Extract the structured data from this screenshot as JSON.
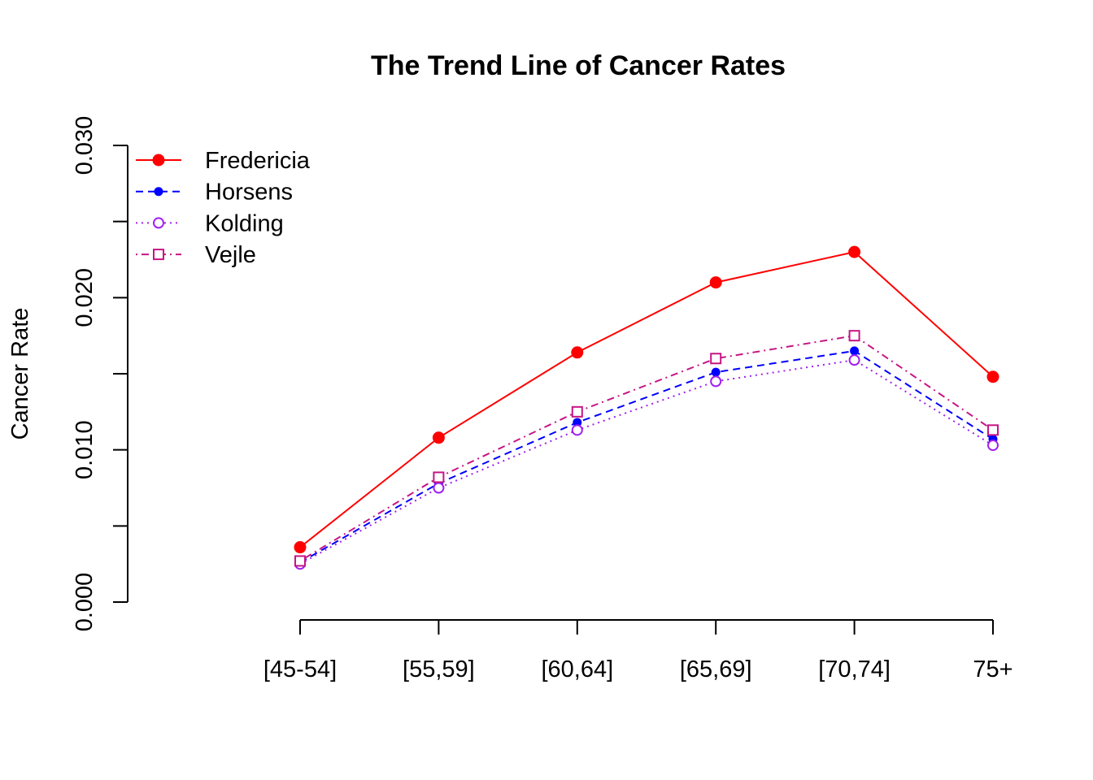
{
  "chart_data": {
    "type": "line",
    "title": "The Trend Line of Cancer Rates",
    "xlabel": "",
    "ylabel": "Cancer Rate",
    "categories": [
      "[45-54]",
      "[55,59]",
      "[60,64]",
      "[65,69]",
      "[70,74]",
      "75+"
    ],
    "ylim": [
      0.0,
      0.03
    ],
    "yticks": [
      0.0,
      0.005,
      0.01,
      0.015,
      0.02,
      0.025,
      0.03
    ],
    "ytick_labels": [
      "0.000",
      "",
      "0.010",
      "",
      "0.020",
      "",
      "0.030"
    ],
    "grid": false,
    "legend_position": "top-left",
    "series": [
      {
        "name": "Fredericia",
        "color": "#ff0000",
        "line": "solid",
        "marker": "filled-circle",
        "values": [
          0.0036,
          0.0108,
          0.0164,
          0.021,
          0.023,
          0.0148
        ]
      },
      {
        "name": "Horsens",
        "color": "#0000ff",
        "line": "dashed",
        "marker": "small-filled-circle",
        "values": [
          0.0026,
          0.0078,
          0.0118,
          0.0151,
          0.0165,
          0.0107
        ]
      },
      {
        "name": "Kolding",
        "color": "#a020f0",
        "line": "dotted",
        "marker": "open-circle",
        "values": [
          0.0025,
          0.0075,
          0.0113,
          0.0145,
          0.0159,
          0.0103
        ]
      },
      {
        "name": "Vejle",
        "color": "#c71585",
        "line": "dotdash",
        "marker": "open-square",
        "values": [
          0.0027,
          0.0082,
          0.0125,
          0.016,
          0.0175,
          0.0113
        ]
      }
    ]
  }
}
